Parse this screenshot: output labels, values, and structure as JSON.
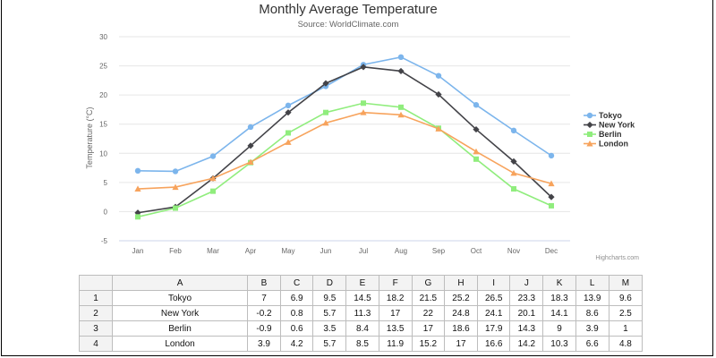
{
  "chart_data": {
    "type": "line",
    "title": "Monthly Average Temperature",
    "subtitle": "Source: WorldClimate.com",
    "xlabel": "",
    "ylabel": "Temperature (°C)",
    "ylim": [
      -5,
      30
    ],
    "yticks": [
      -5,
      0,
      5,
      10,
      15,
      20,
      25,
      30
    ],
    "grid": true,
    "legend_position": "right",
    "credits": "Highcharts.com",
    "categories": [
      "Jan",
      "Feb",
      "Mar",
      "Apr",
      "May",
      "Jun",
      "Jul",
      "Aug",
      "Sep",
      "Oct",
      "Nov",
      "Dec"
    ],
    "series": [
      {
        "name": "Tokyo",
        "color": "#7cb5ec",
        "marker": "circle",
        "values": [
          7,
          6.9,
          9.5,
          14.5,
          18.2,
          21.5,
          25.2,
          26.5,
          23.3,
          18.3,
          13.9,
          9.6
        ]
      },
      {
        "name": "New York",
        "color": "#434348",
        "marker": "diamond",
        "values": [
          -0.2,
          0.8,
          5.7,
          11.3,
          17,
          22,
          24.8,
          24.1,
          20.1,
          14.1,
          8.6,
          2.5
        ]
      },
      {
        "name": "Berlin",
        "color": "#90ed7d",
        "marker": "square",
        "values": [
          -0.9,
          0.6,
          3.5,
          8.4,
          13.5,
          17,
          18.6,
          17.9,
          14.3,
          9,
          3.9,
          1
        ]
      },
      {
        "name": "London",
        "color": "#f7a35c",
        "marker": "triangle",
        "values": [
          3.9,
          4.2,
          5.7,
          8.5,
          11.9,
          15.2,
          17,
          16.6,
          14.2,
          10.3,
          6.6,
          4.8
        ]
      }
    ]
  },
  "spreadsheet": {
    "columns": [
      "A",
      "B",
      "C",
      "D",
      "E",
      "F",
      "G",
      "H",
      "I",
      "J",
      "K",
      "L",
      "M"
    ],
    "rows": [
      {
        "num": "1",
        "cells": [
          "Tokyo",
          "7",
          "6.9",
          "9.5",
          "14.5",
          "18.2",
          "21.5",
          "25.2",
          "26.5",
          "23.3",
          "18.3",
          "13.9",
          "9.6"
        ]
      },
      {
        "num": "2",
        "cells": [
          "New York",
          "-0.2",
          "0.8",
          "5.7",
          "11.3",
          "17",
          "22",
          "24.8",
          "24.1",
          "20.1",
          "14.1",
          "8.6",
          "2.5"
        ]
      },
      {
        "num": "3",
        "cells": [
          "Berlin",
          "-0.9",
          "0.6",
          "3.5",
          "8.4",
          "13.5",
          "17",
          "18.6",
          "17.9",
          "14.3",
          "9",
          "3.9",
          "1"
        ]
      },
      {
        "num": "4",
        "cells": [
          "London",
          "3.9",
          "4.2",
          "5.7",
          "8.5",
          "11.9",
          "15.2",
          "17",
          "16.6",
          "14.2",
          "10.3",
          "6.6",
          "4.8"
        ]
      }
    ]
  }
}
